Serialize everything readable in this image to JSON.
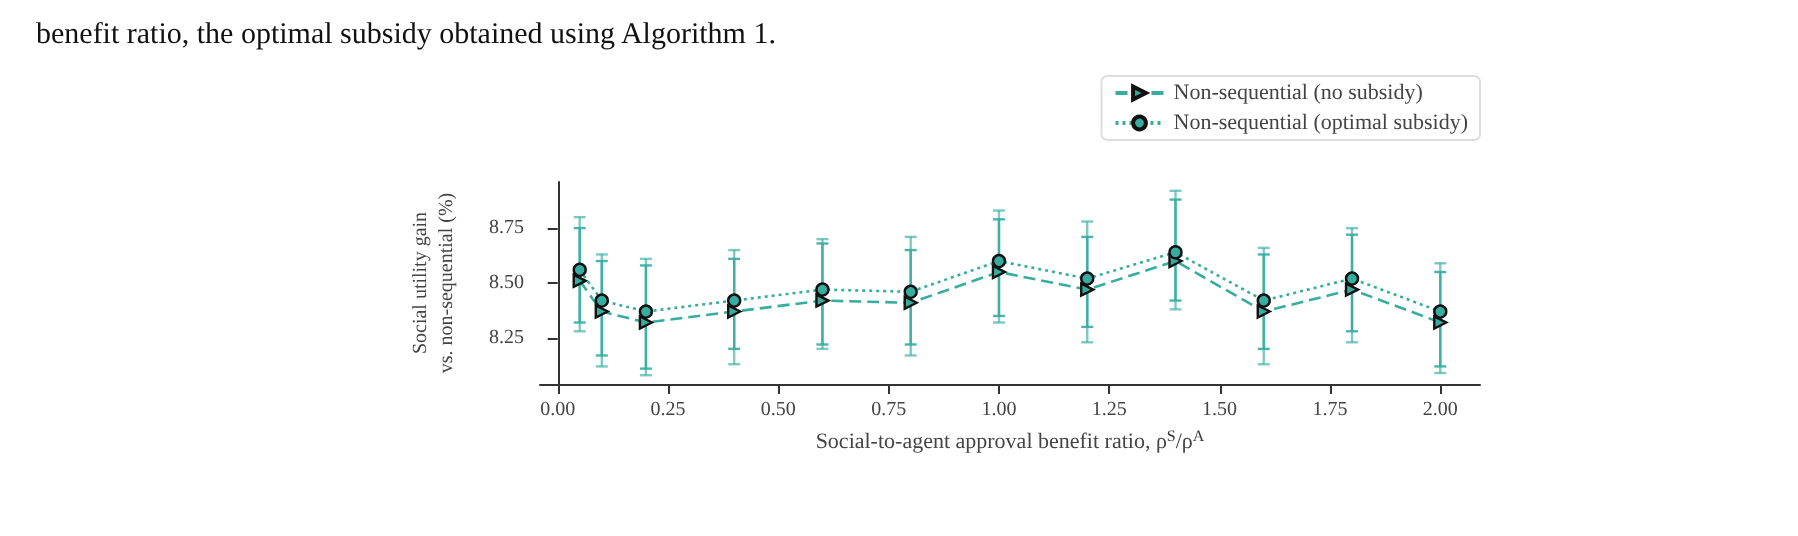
{
  "chart_data": {
    "type": "line",
    "xlabel": "Social-to-agent approval benefit ratio, ρ$^{S}$/ρ$^{A}$",
    "ylabel": "Social utility gain\nvs. non-sequential (%)",
    "annotations": [
      "benefit ratio, the optimal subsidy obtained using Algorithm 1."
    ],
    "x": [
      0.05,
      0.1,
      0.2,
      0.4,
      0.6,
      0.8,
      1.0,
      1.2,
      1.4,
      1.6,
      1.8,
      2.0
    ],
    "series": [
      {
        "name": "Non-sequential (no subsidy)",
        "color": "#36ad9e",
        "marker": "triangle",
        "line_style": "dashed",
        "values": [
          8.51,
          8.37,
          8.32,
          8.37,
          8.42,
          8.41,
          8.55,
          8.47,
          8.6,
          8.37,
          8.47,
          8.32
        ],
        "errors": [
          [
            8.32,
            8.75
          ],
          [
            8.17,
            8.6
          ],
          [
            8.11,
            8.58
          ],
          [
            8.2,
            8.61
          ],
          [
            8.22,
            8.68
          ],
          [
            8.22,
            8.65
          ],
          [
            8.35,
            8.79
          ],
          [
            8.3,
            8.71
          ],
          [
            8.42,
            8.88
          ],
          [
            8.2,
            8.63
          ],
          [
            8.28,
            8.72
          ],
          [
            8.12,
            8.55
          ]
        ]
      },
      {
        "name": "Non-sequential (optimal subsidy)",
        "color": "#36ad9e",
        "marker": "circle",
        "line_style": "dotted",
        "values": [
          8.56,
          8.42,
          8.37,
          8.42,
          8.47,
          8.46,
          8.6,
          8.52,
          8.64,
          8.42,
          8.52,
          8.37
        ],
        "errors": [
          [
            8.28,
            8.8
          ],
          [
            8.12,
            8.63
          ],
          [
            8.08,
            8.61
          ],
          [
            8.13,
            8.65
          ],
          [
            8.2,
            8.7
          ],
          [
            8.17,
            8.71
          ],
          [
            8.32,
            8.83
          ],
          [
            8.23,
            8.78
          ],
          [
            8.38,
            8.92
          ],
          [
            8.13,
            8.66
          ],
          [
            8.23,
            8.75
          ],
          [
            8.09,
            8.59
          ]
        ]
      }
    ],
    "xlim": [
      -0.04,
      2.09
    ],
    "ylim": [
      8.04,
      8.96
    ],
    "xticks": [
      {
        "value": 0,
        "label": "0.00"
      },
      {
        "value": 0.25,
        "label": "0.25"
      },
      {
        "value": 0.5,
        "label": "0.50"
      },
      {
        "value": 0.75,
        "label": "0.75"
      },
      {
        "value": 1,
        "label": "1.00"
      },
      {
        "value": 1.25,
        "label": "1.25"
      },
      {
        "value": 1.5,
        "label": "1.50"
      },
      {
        "value": 1.75,
        "label": "1.75"
      },
      {
        "value": 2,
        "label": "2.00"
      }
    ],
    "yticks": [
      8.25,
      {
        "value": 8.5,
        "label": "8.50"
      },
      8.75
    ],
    "grid": false,
    "legend": "top right"
  }
}
